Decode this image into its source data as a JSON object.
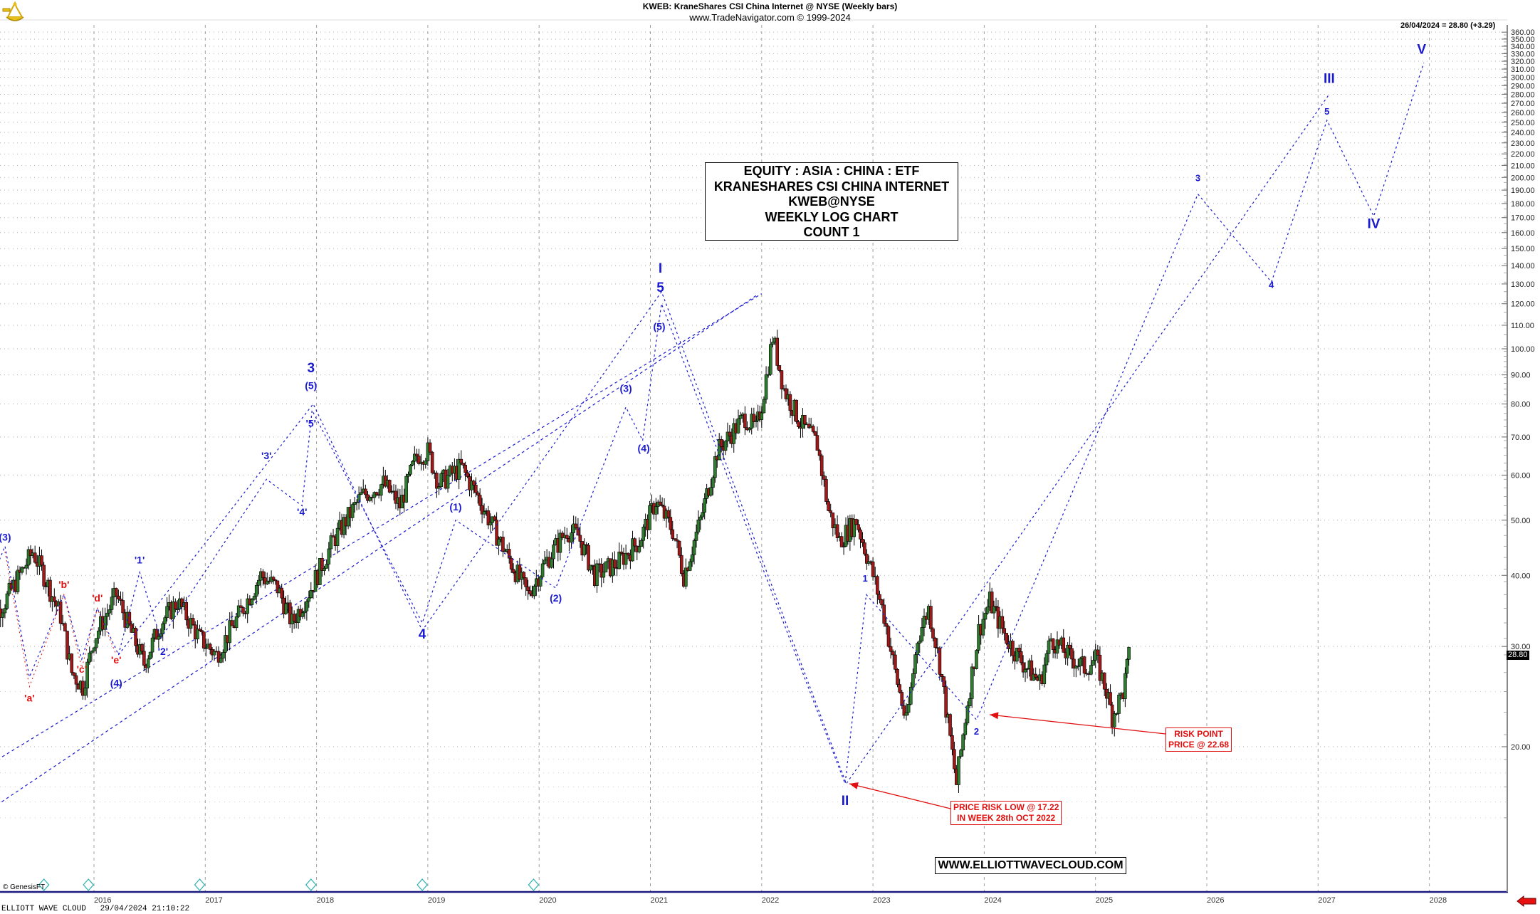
{
  "header": {
    "title": "KWEB:  KraneShares CSI China Internet @ NYSE  (Weekly bars)",
    "subtitle": "www.TradeNavigator.com © 1999-2024",
    "last_bar_info": "26/04/2024 = 28.80 (+3.29)",
    "logo_icon": "sextant-icon"
  },
  "info_box": {
    "lines": [
      "EQUITY : ASIA : CHINA : ETF",
      "KRANESHARES CSI CHINA INTERNET",
      "KWEB@NYSE",
      "WEEKLY LOG CHART",
      "COUNT 1"
    ]
  },
  "annotations": {
    "risk_low": {
      "line1": "PRICE RISK LOW @ 17.22",
      "line2": "IN WEEK 28th OCT 2022"
    },
    "risk_point": {
      "line1": "RISK POINT",
      "line2": "PRICE @ 22.68"
    },
    "website": "WWW.ELLIOTTWAVECLOUD.COM"
  },
  "footer": {
    "copyright": "© GenesisFT",
    "status": "ELLIOTT WAVE CLOUD   29/04/2024 21:10:22"
  },
  "current_price_tag": "28.80",
  "colors": {
    "bull": "#2e7d2e",
    "bear": "#a01818",
    "wave_label": "#1a1ad0",
    "wave_label_red": "#e01010",
    "axis_line": "#1a1a80",
    "grid": "#b0b0b0"
  },
  "chart_data": {
    "type": "candlestick",
    "title": "KWEB: KraneShares CSI China Internet @ NYSE (Weekly bars)",
    "scale": "log",
    "xlabel": "",
    "ylabel": "",
    "x_ticks": [
      "2016",
      "2017",
      "2018",
      "2019",
      "2020",
      "2021",
      "2022",
      "2023",
      "2024",
      "2025",
      "2026",
      "2027",
      "2028"
    ],
    "y_ticks": [
      20,
      30,
      40,
      50,
      60,
      70,
      80,
      90,
      100,
      110,
      120,
      130,
      140,
      150,
      160,
      170,
      180,
      190,
      200,
      210,
      220,
      230,
      240,
      250,
      260,
      270,
      280,
      290,
      300,
      310,
      320,
      330,
      340,
      350,
      360
    ],
    "ylim": [
      14,
      365
    ],
    "last_price": 28.8,
    "last_date": "26/04/2024",
    "last_change": 3.29,
    "price_path": [
      {
        "t": 2015.0,
        "p": 32
      },
      {
        "t": 2015.2,
        "p": 36
      },
      {
        "t": 2015.45,
        "p": 44
      },
      {
        "t": 2015.55,
        "p": 40
      },
      {
        "t": 2015.7,
        "p": 34
      },
      {
        "t": 2015.8,
        "p": 27
      },
      {
        "t": 2015.9,
        "p": 25.5
      },
      {
        "t": 2016.0,
        "p": 31
      },
      {
        "t": 2016.2,
        "p": 37
      },
      {
        "t": 2016.3,
        "p": 33
      },
      {
        "t": 2016.45,
        "p": 28
      },
      {
        "t": 2016.6,
        "p": 33
      },
      {
        "t": 2016.75,
        "p": 36
      },
      {
        "t": 2016.95,
        "p": 31
      },
      {
        "t": 2017.1,
        "p": 29
      },
      {
        "t": 2017.3,
        "p": 34
      },
      {
        "t": 2017.5,
        "p": 40
      },
      {
        "t": 2017.65,
        "p": 38
      },
      {
        "t": 2017.78,
        "p": 33
      },
      {
        "t": 2017.95,
        "p": 38
      },
      {
        "t": 2018.15,
        "p": 46
      },
      {
        "t": 2018.4,
        "p": 55
      },
      {
        "t": 2018.6,
        "p": 58
      },
      {
        "t": 2018.75,
        "p": 53
      },
      {
        "t": 2018.9,
        "p": 65
      },
      {
        "t": 2019.0,
        "p": 66
      },
      {
        "t": 2019.1,
        "p": 58
      },
      {
        "t": 2019.3,
        "p": 62
      },
      {
        "t": 2019.45,
        "p": 55
      },
      {
        "t": 2019.6,
        "p": 48
      },
      {
        "t": 2019.75,
        "p": 42
      },
      {
        "t": 2019.9,
        "p": 37
      },
      {
        "t": 2020.05,
        "p": 42
      },
      {
        "t": 2020.25,
        "p": 48
      },
      {
        "t": 2020.35,
        "p": 47
      },
      {
        "t": 2020.5,
        "p": 40
      },
      {
        "t": 2020.7,
        "p": 42
      },
      {
        "t": 2020.9,
        "p": 46
      },
      {
        "t": 2021.05,
        "p": 54
      },
      {
        "t": 2021.2,
        "p": 48
      },
      {
        "t": 2021.3,
        "p": 40
      },
      {
        "t": 2021.45,
        "p": 50
      },
      {
        "t": 2021.6,
        "p": 66
      },
      {
        "t": 2021.75,
        "p": 72
      },
      {
        "t": 2021.85,
        "p": 76
      },
      {
        "t": 2021.95,
        "p": 72
      },
      {
        "t": 2022.0,
        "p": 80
      },
      {
        "t": 2022.1,
        "p": 105
      },
      {
        "t": 2022.2,
        "p": 85
      },
      {
        "t": 2022.35,
        "p": 74
      },
      {
        "t": 2022.5,
        "p": 68
      },
      {
        "t": 2022.6,
        "p": 52
      },
      {
        "t": 2022.7,
        "p": 46
      },
      {
        "t": 2022.85,
        "p": 50
      },
      {
        "t": 2023.0,
        "p": 40
      },
      {
        "t": 2023.1,
        "p": 34
      },
      {
        "t": 2023.2,
        "p": 27
      },
      {
        "t": 2023.3,
        "p": 22
      },
      {
        "t": 2023.4,
        "p": 31
      },
      {
        "t": 2023.5,
        "p": 35
      },
      {
        "t": 2023.6,
        "p": 28
      },
      {
        "t": 2023.75,
        "p": 17.22
      },
      {
        "t": 2023.85,
        "p": 24
      },
      {
        "t": 2023.95,
        "p": 32
      },
      {
        "t": 2024.05,
        "p": 36
      },
      {
        "t": 2024.2,
        "p": 31
      },
      {
        "t": 2024.35,
        "p": 28
      },
      {
        "t": 2024.5,
        "p": 26
      },
      {
        "t": 2024.6,
        "p": 31
      },
      {
        "t": 2024.75,
        "p": 29
      },
      {
        "t": 2024.9,
        "p": 27.5
      },
      {
        "t": 2025.0,
        "p": 28.5
      },
      {
        "t": 2025.1,
        "p": 25
      },
      {
        "t": 2025.15,
        "p": 22.68
      },
      {
        "t": 2025.25,
        "p": 25
      },
      {
        "t": 2025.3,
        "p": 28.8
      }
    ],
    "wave_labels": [
      {
        "label": "(3)",
        "t": 2015.2,
        "p": 46,
        "color": "blue",
        "size": "s"
      },
      {
        "label": "'a'",
        "t": 2015.42,
        "p": 24,
        "color": "red",
        "size": "s"
      },
      {
        "label": "'b'",
        "t": 2015.73,
        "p": 38,
        "color": "red",
        "size": "s"
      },
      {
        "label": "'c'",
        "t": 2015.89,
        "p": 27,
        "color": "red",
        "size": "s"
      },
      {
        "label": "'d'",
        "t": 2016.03,
        "p": 36,
        "color": "red",
        "size": "s"
      },
      {
        "label": "'e'",
        "t": 2016.2,
        "p": 28,
        "color": "red",
        "size": "s"
      },
      {
        "label": "(4)",
        "t": 2016.2,
        "p": 25.5,
        "color": "blue",
        "size": "s"
      },
      {
        "label": "'1'",
        "t": 2016.41,
        "p": 42,
        "color": "blue",
        "size": "s"
      },
      {
        "label": "'2'",
        "t": 2016.62,
        "p": 29,
        "color": "blue",
        "size": "s"
      },
      {
        "label": "'3'",
        "t": 2017.55,
        "p": 64,
        "color": "blue",
        "size": "s"
      },
      {
        "label": "'4'",
        "t": 2017.87,
        "p": 51,
        "color": "blue",
        "size": "s"
      },
      {
        "label": "'5'",
        "t": 2017.95,
        "p": 73,
        "color": "blue",
        "size": "s"
      },
      {
        "label": "(5)",
        "t": 2017.95,
        "p": 85,
        "color": "blue",
        "size": "s"
      },
      {
        "label": "3",
        "t": 2017.95,
        "p": 91,
        "color": "blue",
        "size": "m"
      },
      {
        "label": "4",
        "t": 2018.95,
        "p": 31,
        "color": "blue",
        "size": "m"
      },
      {
        "label": "(1)",
        "t": 2019.25,
        "p": 52,
        "color": "blue",
        "size": "s"
      },
      {
        "label": "(2)",
        "t": 2020.15,
        "p": 36,
        "color": "blue",
        "size": "s"
      },
      {
        "label": "(3)",
        "t": 2020.78,
        "p": 84,
        "color": "blue",
        "size": "s"
      },
      {
        "label": "(4)",
        "t": 2020.94,
        "p": 66,
        "color": "blue",
        "size": "s"
      },
      {
        "label": "(5)",
        "t": 2021.08,
        "p": 108,
        "color": "blue",
        "size": "s"
      },
      {
        "label": "5",
        "t": 2021.09,
        "p": 126,
        "color": "blue",
        "size": "m"
      },
      {
        "label": "I",
        "t": 2021.09,
        "p": 136,
        "color": "blue",
        "size": "m"
      },
      {
        "label": "II",
        "t": 2022.75,
        "p": 15.8,
        "color": "blue",
        "size": "m"
      },
      {
        "label": "1",
        "t": 2022.93,
        "p": 39,
        "color": "blue",
        "size": "xs"
      },
      {
        "label": "2",
        "t": 2023.93,
        "p": 21,
        "color": "blue",
        "size": "xs"
      },
      {
        "label": "3",
        "t": 2025.92,
        "p": 197,
        "color": "blue",
        "size": "xs"
      },
      {
        "label": "4",
        "t": 2026.58,
        "p": 128,
        "color": "blue",
        "size": "xs"
      },
      {
        "label": "5",
        "t": 2027.08,
        "p": 258,
        "color": "blue",
        "size": "xs"
      },
      {
        "label": "III",
        "t": 2027.1,
        "p": 293,
        "color": "blue",
        "size": "m"
      },
      {
        "label": "IV",
        "t": 2027.5,
        "p": 163,
        "color": "blue",
        "size": "m"
      },
      {
        "label": "V",
        "t": 2027.93,
        "p": 330,
        "color": "blue",
        "size": "m"
      }
    ],
    "wave_paths": [
      [
        [
          2015.0,
          36
        ],
        [
          2015.2,
          45
        ],
        [
          2015.42,
          26.5
        ],
        [
          2015.73,
          37
        ],
        [
          2015.89,
          28.5
        ],
        [
          2016.03,
          35
        ],
        [
          2016.22,
          29
        ],
        [
          2016.41,
          40.5
        ],
        [
          2016.6,
          31
        ],
        [
          2017.55,
          59
        ],
        [
          2017.87,
          53
        ],
        [
          2017.96,
          78
        ],
        [
          2018.95,
          33
        ],
        [
          2019.25,
          50
        ],
        [
          2020.15,
          38
        ],
        [
          2020.78,
          79
        ],
        [
          2020.93,
          69
        ],
        [
          2021.1,
          120
        ],
        [
          2022.75,
          17.22
        ],
        [
          2022.94,
          37
        ],
        [
          2023.93,
          22.3
        ],
        [
          2025.92,
          187
        ],
        [
          2026.58,
          131
        ],
        [
          2027.08,
          252
        ],
        [
          2027.5,
          171
        ],
        [
          2027.95,
          318
        ]
      ],
      [
        [
          2016.22,
          29
        ],
        [
          2017.97,
          80
        ],
        [
          2018.95,
          32
        ],
        [
          2021.1,
          126
        ],
        [
          2022.76,
          17.22
        ],
        [
          2027.1,
          280
        ]
      ]
    ],
    "channel_lines": [
      [
        [
          2015.0,
          18.3
        ],
        [
          2022.0,
          125
        ]
      ],
      [
        [
          2015.0,
          15.2
        ],
        [
          2021.95,
          124
        ]
      ]
    ],
    "annotations": [
      {
        "text": "PRICE RISK LOW @ 17.22 / IN WEEK 28th OCT 2022",
        "target_t": 2022.76,
        "target_p": 17.22
      },
      {
        "text": "RISK POINT / PRICE @ 22.68",
        "target_t": 2024.06,
        "target_p": 22.68
      }
    ]
  }
}
